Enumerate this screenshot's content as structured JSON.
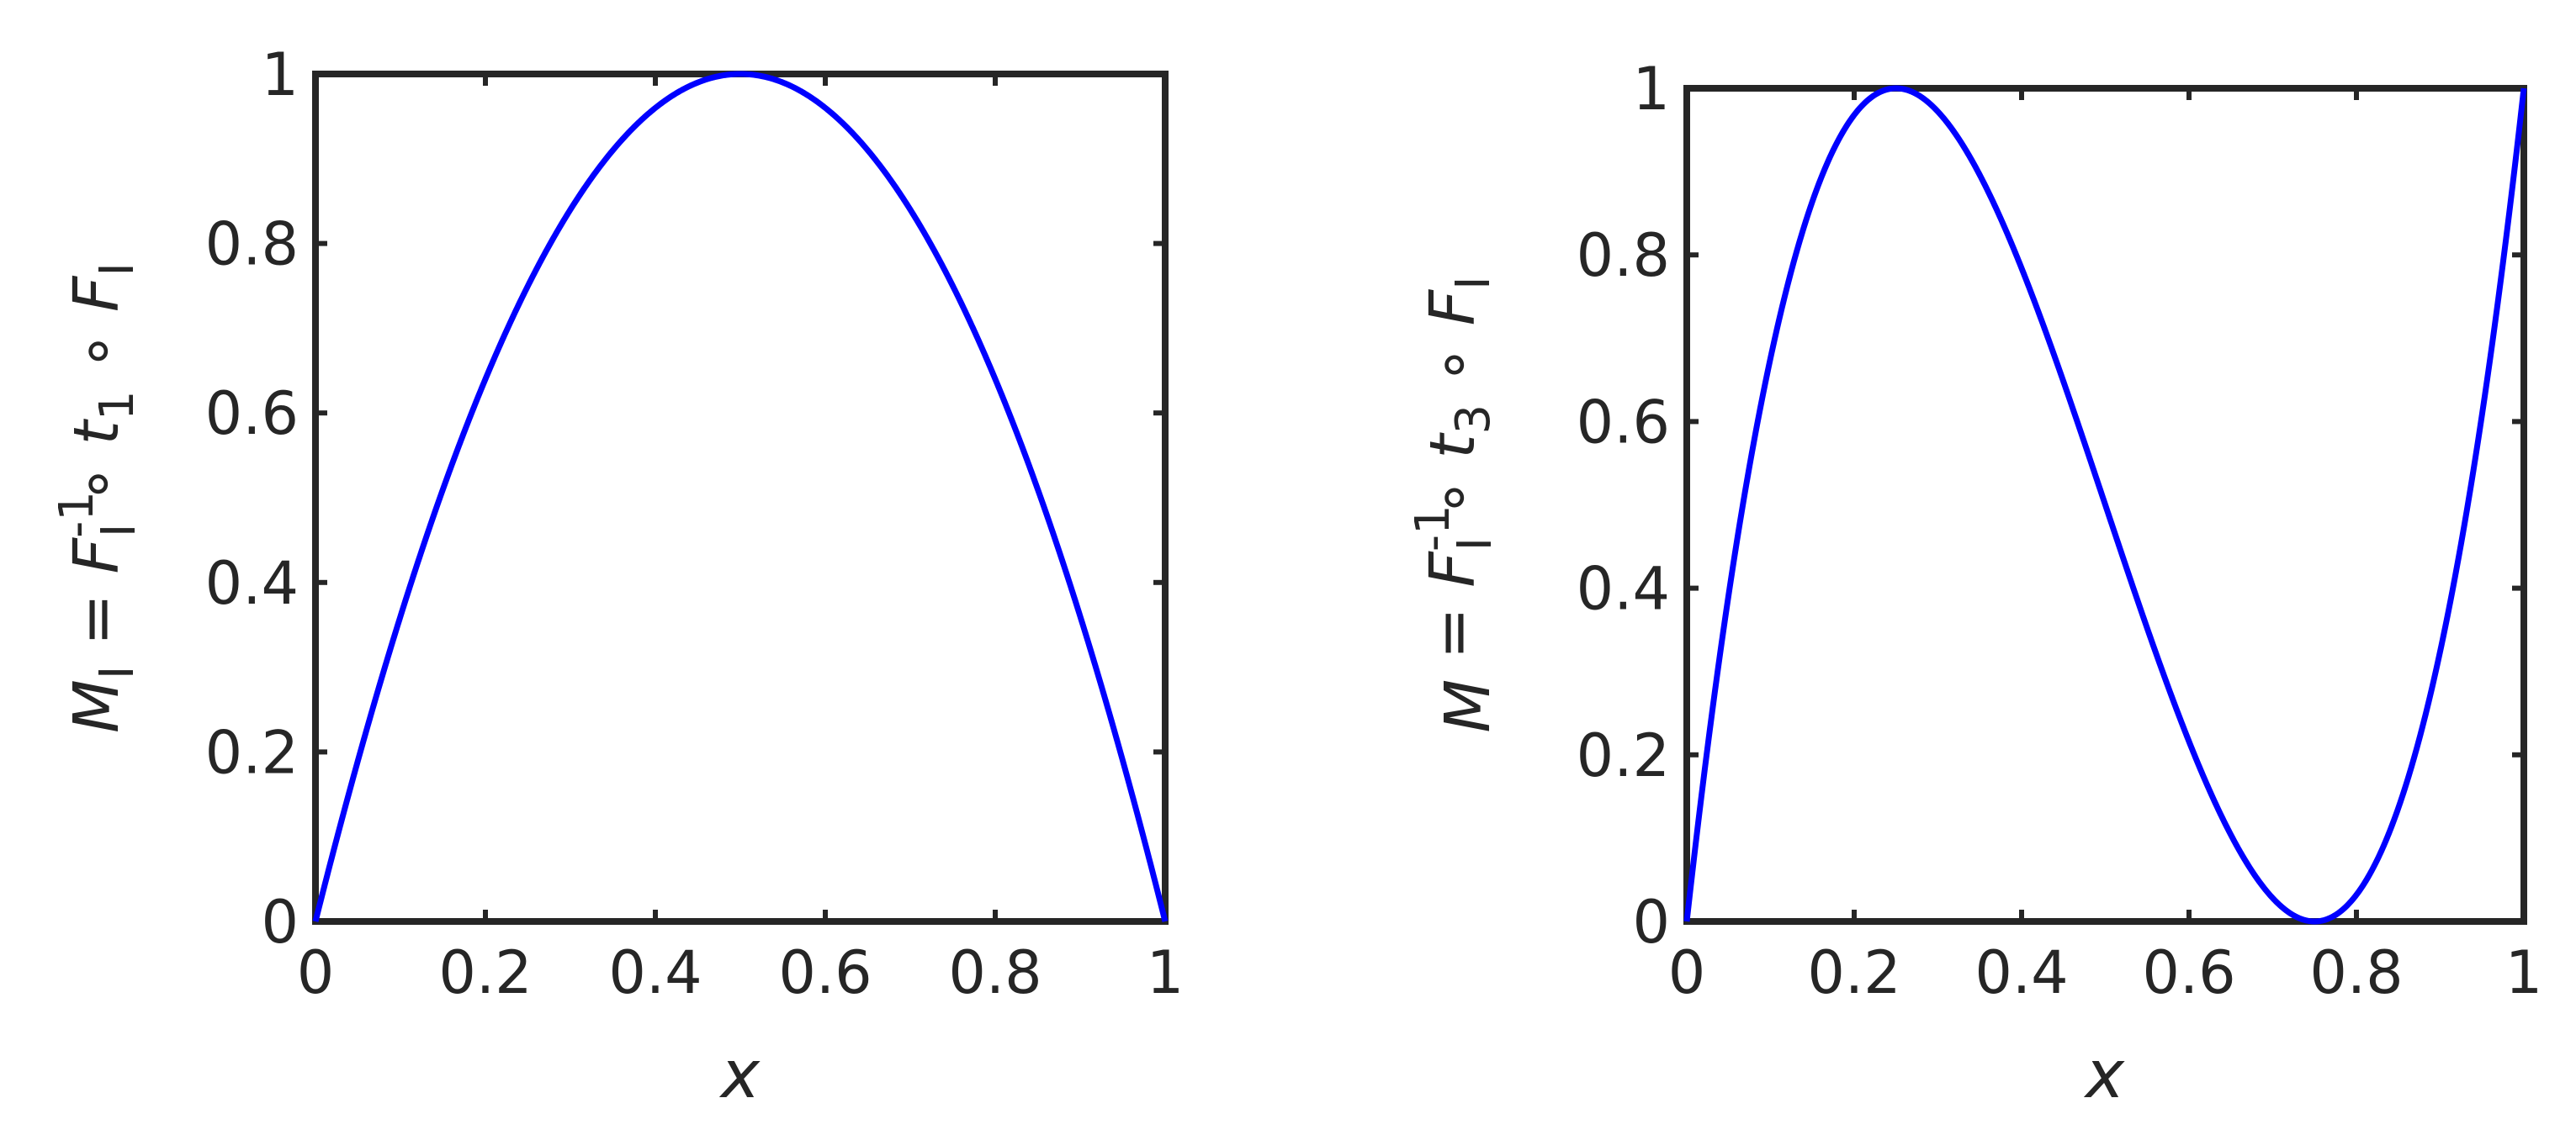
{
  "chart_data": [
    {
      "type": "line",
      "title": "",
      "xlabel": "x",
      "ylabel": {
        "prefix": "M",
        "prefix_sub": "I",
        "eq": " = ",
        "f": "F",
        "f_sub": "I",
        "f_sup": "-1",
        "compose1": " ∘ ",
        "t": "t",
        "t_sub": "1",
        "compose2": " ∘ ",
        "g": "F",
        "g_sub": "I"
      },
      "xlim": [
        0,
        1
      ],
      "ylim": [
        0,
        1
      ],
      "xticks": [
        "0",
        "0.2",
        "0.4",
        "0.6",
        "0.8",
        "1"
      ],
      "yticks": [
        "0",
        "0.2",
        "0.4",
        "0.6",
        "0.8",
        "1"
      ],
      "function": "logistic_map_order_1",
      "series": [
        {
          "color": "#0000ff"
        }
      ],
      "grid": false,
      "legend": "none"
    },
    {
      "type": "line",
      "title": "",
      "xlabel": "x",
      "ylabel": {
        "prefix": "M",
        "prefix_sub": "",
        "eq": " = ",
        "f": "F",
        "f_sub": "I",
        "f_sup": "-1",
        "compose1": " ∘ ",
        "t": "t",
        "t_sub": "3",
        "compose2": " ∘ ",
        "g": "F",
        "g_sub": "I"
      },
      "xlim": [
        0,
        1
      ],
      "ylim": [
        0,
        1
      ],
      "xticks": [
        "0",
        "0.2",
        "0.4",
        "0.6",
        "0.8",
        "1"
      ],
      "yticks": [
        "0",
        "0.2",
        "0.4",
        "0.6",
        "0.8",
        "1"
      ],
      "function": "logistic_map_order_3",
      "series": [
        {
          "color": "#0000ff"
        }
      ],
      "grid": false,
      "legend": "none"
    }
  ]
}
